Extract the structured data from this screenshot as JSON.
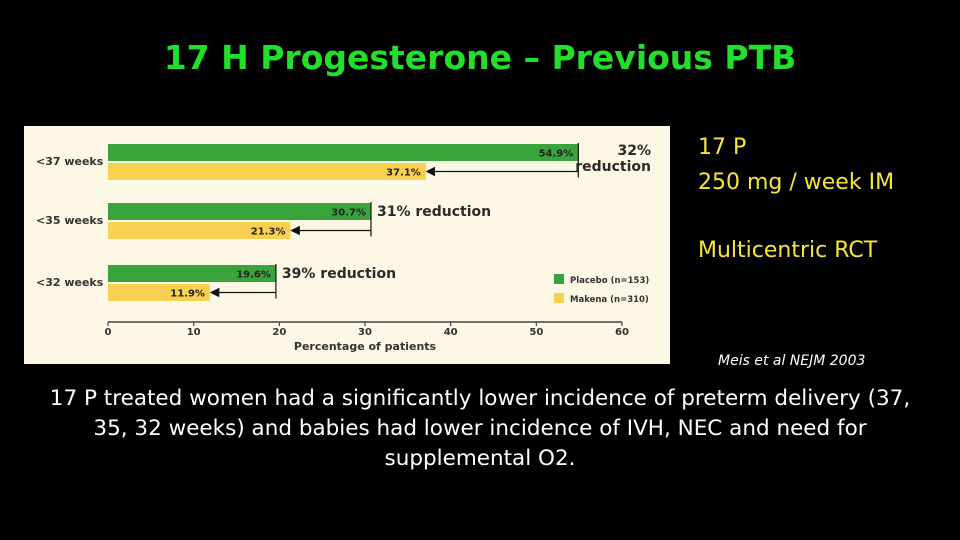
{
  "slide": {
    "title": "17 H Progesterone – Previous PTB",
    "info_lines": [
      "17 P",
      "250 mg / week  IM",
      "Multicentric RCT"
    ],
    "citation": "Meis et al  NEJM 2003",
    "caption": "17 P treated women had a significantly lower incidence of preterm delivery (37, 35, 32 weeks) and babies had lower incidence of IVH, NEC and need for supplemental O2."
  },
  "chart_data": {
    "type": "bar",
    "orientation": "horizontal",
    "categories": [
      "<37 weeks",
      "<35 weeks",
      "<32 weeks"
    ],
    "series": [
      {
        "name": "Placebo (n=153)",
        "values": [
          54.9,
          30.7,
          19.6
        ],
        "labels": [
          "54.9%",
          "30.7%",
          "19.6%"
        ],
        "color": "#3aa43c"
      },
      {
        "name": "Makena (n=310)",
        "values": [
          37.1,
          21.3,
          11.9
        ],
        "labels": [
          "37.1%",
          "21.3%",
          "11.9%"
        ],
        "color": "#f9d04f"
      }
    ],
    "annotations": [
      [
        "32%",
        "reduction"
      ],
      [
        "31% reduction"
      ],
      [
        "39% reduction"
      ]
    ],
    "xlabel": "Percentage of patients",
    "xlim": [
      0,
      60
    ],
    "xticks": [
      0,
      10,
      20,
      30,
      40,
      50,
      60
    ],
    "legend": "bottom-right"
  }
}
